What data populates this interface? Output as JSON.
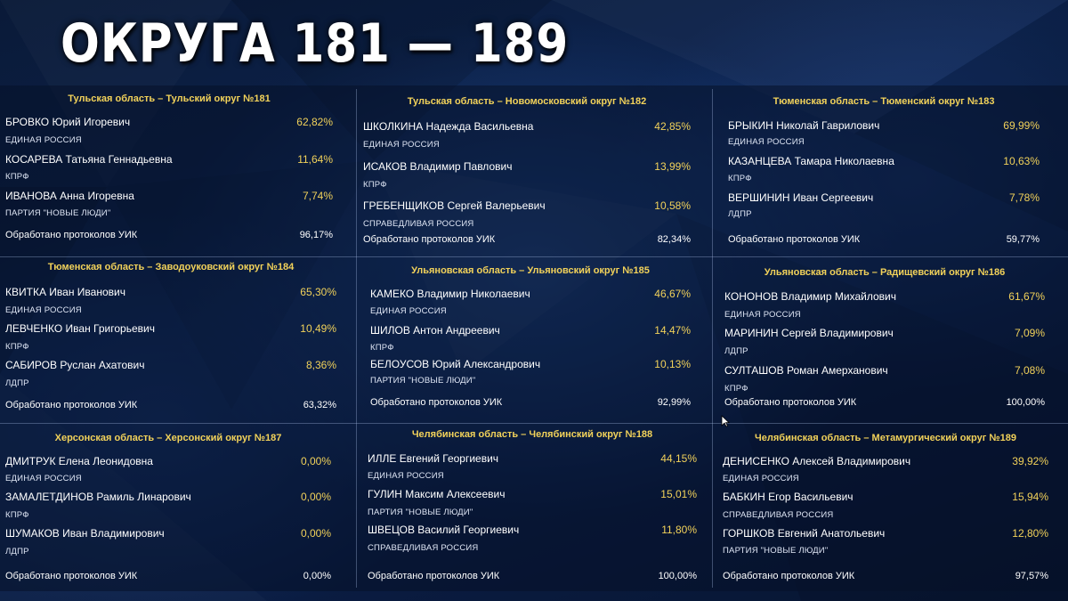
{
  "title": "ОКРУГА 181 — 189",
  "districts": [
    {
      "title": "Тульская область – Тульский округ №181",
      "candidates": [
        {
          "name": "БРОВКО Юрий Игоревич",
          "pct": "62,82%",
          "party": "ЕДИНАЯ РОССИЯ"
        },
        {
          "name": "КОСАРЕВА Татьяна Геннадьевна",
          "pct": "11,64%",
          "party": "КПРФ"
        },
        {
          "name": "ИВАНОВА Анна Игоревна",
          "pct": "7,74%",
          "party": "ПАРТИЯ \"НОВЫЕ ЛЮДИ\""
        }
      ],
      "processed_label": "Обработано протоколов УИК",
      "processed": "96,17%"
    },
    {
      "title": "Тульская область – Новомосковский округ №182",
      "candidates": [
        {
          "name": "ШКОЛКИНА Надежда Васильевна",
          "pct": "42,85%",
          "party": "ЕДИНАЯ РОССИЯ"
        },
        {
          "name": "ИСАКОВ Владимир Павлович",
          "pct": "13,99%",
          "party": "КПРФ"
        },
        {
          "name": "ГРЕБЕНЩИКОВ Сергей Валерьевич",
          "pct": "10,58%",
          "party": "СПРАВЕДЛИВАЯ РОССИЯ"
        }
      ],
      "processed_label": "Обработано протоколов УИК",
      "processed": "82,34%"
    },
    {
      "title": "Тюменская область – Тюменский округ №183",
      "candidates": [
        {
          "name": "БРЫКИН Николай Гаврилович",
          "pct": "69,99%",
          "party": "ЕДИНАЯ РОССИЯ"
        },
        {
          "name": "КАЗАНЦЕВА Тамара Николаевна",
          "pct": "10,63%",
          "party": "КПРФ"
        },
        {
          "name": "ВЕРШИНИН Иван Сергеевич",
          "pct": "7,78%",
          "party": "ЛДПР"
        }
      ],
      "processed_label": "Обработано протоколов УИК",
      "processed": "59,77%"
    },
    {
      "title": "Тюменская область – Заводоуковский округ №184",
      "candidates": [
        {
          "name": "КВИТКА Иван Иванович",
          "pct": "65,30%",
          "party": "ЕДИНАЯ РОССИЯ"
        },
        {
          "name": "ЛЕВЧЕНКО Иван Григорьевич",
          "pct": "10,49%",
          "party": "КПРФ"
        },
        {
          "name": "САБИРОВ Руслан Ахатович",
          "pct": "8,36%",
          "party": "ЛДПР"
        }
      ],
      "processed_label": "Обработано протоколов УИК",
      "processed": "63,32%"
    },
    {
      "title": "Ульяновская область – Ульяновский округ №185",
      "candidates": [
        {
          "name": "КАМЕКО Владимир Николаевич",
          "pct": "46,67%",
          "party": "ЕДИНАЯ РОССИЯ"
        },
        {
          "name": "ШИЛОВ Антон Андреевич",
          "pct": "14,47%",
          "party": "КПРФ"
        },
        {
          "name": "БЕЛОУСОВ Юрий Александрович",
          "pct": "10,13%",
          "party": "ПАРТИЯ \"НОВЫЕ ЛЮДИ\""
        }
      ],
      "processed_label": "Обработано протоколов УИК",
      "processed": "92,99%"
    },
    {
      "title": "Ульяновская область – Радищевский округ №186",
      "candidates": [
        {
          "name": "КОНОНОВ Владимир Михайлович",
          "pct": "61,67%",
          "party": "ЕДИНАЯ РОССИЯ"
        },
        {
          "name": "МАРИНИН Сергей Владимирович",
          "pct": "7,09%",
          "party": "ЛДПР"
        },
        {
          "name": "СУЛТАШОВ Роман Амерханович",
          "pct": "7,08%",
          "party": "КПРФ"
        }
      ],
      "processed_label": "Обработано протоколов УИК",
      "processed": "100,00%"
    },
    {
      "title": "Херсонская область – Херсонский округ №187",
      "candidates": [
        {
          "name": "ДМИТРУК Елена Леонидовна",
          "pct": "0,00%",
          "party": "ЕДИНАЯ РОССИЯ"
        },
        {
          "name": "ЗАМАЛЕТДИНОВ Рамиль Линарович",
          "pct": "0,00%",
          "party": "КПРФ"
        },
        {
          "name": "ШУМАКОВ Иван Владимирович",
          "pct": "0,00%",
          "party": "ЛДПР"
        }
      ],
      "processed_label": "Обработано протоколов УИК",
      "processed": "0,00%"
    },
    {
      "title": "Челябинская область – Челябинский округ №188",
      "candidates": [
        {
          "name": "ИЛЛЕ Евгений Георгиевич",
          "pct": "44,15%",
          "party": "ЕДИНАЯ РОССИЯ"
        },
        {
          "name": "ГУЛИН Максим Алексеевич",
          "pct": "15,01%",
          "party": "ПАРТИЯ \"НОВЫЕ ЛЮДИ\""
        },
        {
          "name": "ШВЕЦОВ Василий Георгиевич",
          "pct": "11,80%",
          "party": "СПРАВЕДЛИВАЯ РОССИЯ"
        }
      ],
      "processed_label": "Обработано протоколов УИК",
      "processed": "100,00%"
    },
    {
      "title": "Челябинская область – Метамургический округ №189",
      "candidates": [
        {
          "name": "ДЕНИСЕНКО Алексей Владимирович",
          "pct": "39,92%",
          "party": "ЕДИНАЯ РОССИЯ"
        },
        {
          "name": "БАБКИН Егор Васильевич",
          "pct": "15,94%",
          "party": "СПРАВЕДЛИВАЯ РОССИЯ"
        },
        {
          "name": "ГОРШКОВ Евгений Анатольевич",
          "pct": "12,80%",
          "party": "ПАРТИЯ \"НОВЫЕ ЛЮДИ\""
        }
      ],
      "processed_label": "Обработано протоколов УИК",
      "processed": "97,57%"
    }
  ]
}
